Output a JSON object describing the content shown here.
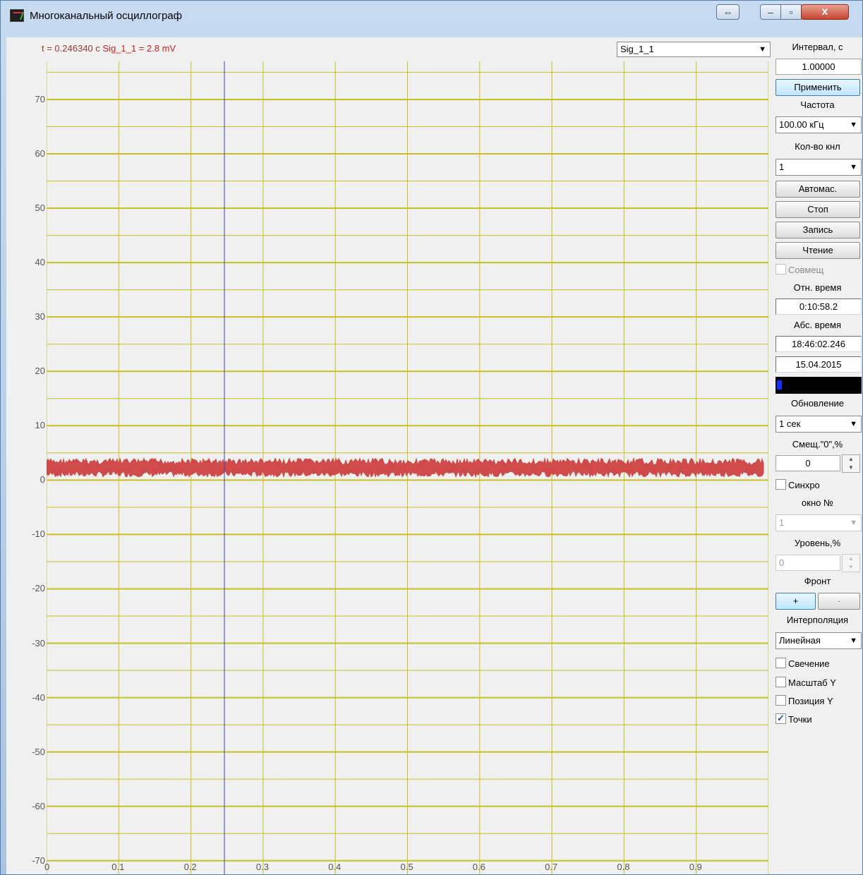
{
  "window": {
    "title": "Многоканальный осциллограф",
    "swap_label": "⇔",
    "min_label": "–",
    "max_label": "▫",
    "close_label": "x"
  },
  "readout": {
    "time_label": "t = 0.246340 с",
    "signal_label": "Sig_1_1 =  2.8 mV"
  },
  "channel_select": {
    "value": "Sig_1_1"
  },
  "panel": {
    "interval_label": "Интервал, с",
    "interval_value": "1.00000",
    "apply_button": "Применить",
    "freq_label": "Частота",
    "freq_value": "100.00 кГц",
    "channels_label": "Кол-во кнл",
    "channels_value": "1",
    "auto_button": "Автомас.",
    "stop_button": "Стоп",
    "record_button": "Запись",
    "read_button": "Чтение",
    "combine_label": "Совмещ",
    "rel_time_label": "Отн. время",
    "rel_time_value": "0:10:58.2",
    "abs_time_label": "Абс. время",
    "abs_time_value": "18:46:02.246",
    "date_value": "15.04.2015",
    "progress_fraction": 0.06,
    "update_label": "Обновление",
    "update_value": "1 сек",
    "offset_label": "Смещ.\"0\",%",
    "offset_value": "0",
    "sync_label": "Синхро",
    "window_no_label": "окно №",
    "window_no_value": "1",
    "level_label": "Уровень,%",
    "level_value": "0",
    "front_label": "Фронт",
    "front_plus": "+",
    "front_minus": "-",
    "interp_label": "Интерполяция",
    "interp_value": "Линейная",
    "glow_label": "Свечение",
    "scale_y_label": "Масштаб Y",
    "pos_y_label": "Позиция Y",
    "points_label": "Точки"
  },
  "chart_data": {
    "type": "line",
    "x_ticks": [
      "0",
      "0.1",
      "0.2",
      "0.3",
      "0.4",
      "0.5",
      "0.6",
      "0.7",
      "0.8",
      "0.9"
    ],
    "y_ticks": [
      "70",
      "60",
      "50",
      "40",
      "30",
      "20",
      "10",
      "0",
      "-10",
      "-20",
      "-30",
      "-40",
      "-50",
      "-60",
      "-70"
    ],
    "xlim": [
      0,
      1
    ],
    "ylim": [
      -72.5,
      77
    ],
    "cursor_x": 0.24634,
    "series": [
      {
        "mean": 2.2,
        "min": 0.6,
        "max": 4.0,
        "x_end": 0.995,
        "color": "#d04a4a"
      }
    ],
    "grid_color": "#c8c020",
    "cursor_color": "#4040b0"
  }
}
